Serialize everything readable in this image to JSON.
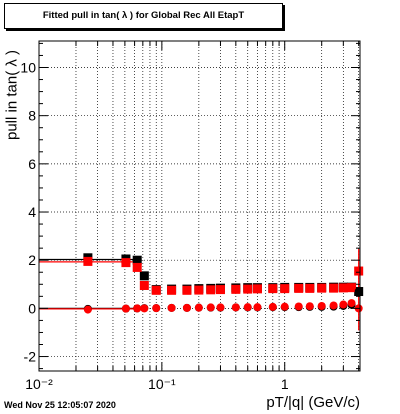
{
  "title": "Fitted pull in tan( λ ) for Global Rec All EtapT",
  "footer": {
    "timestamp": "Wed Nov 25 12:05:07 2020"
  },
  "chart_data": {
    "type": "scatter",
    "title": "Fitted pull in tan( λ ) for Global Rec All EtapT",
    "xlabel": "pT/|q| (GeV/c)",
    "ylabel": "pull in tan( λ )",
    "xscale": "log",
    "xlim": [
      0.01,
      4.1
    ],
    "ylim": [
      -2.6,
      11.1
    ],
    "grid": true,
    "x_ticklabels": [
      "10⁻²",
      "10⁻¹",
      "1"
    ],
    "y_ticks": [
      -2,
      0,
      2,
      4,
      6,
      8,
      10
    ],
    "series": [
      {
        "color": "#000000",
        "markers": "square",
        "role": "sigma",
        "x": [
          0.025,
          0.051,
          0.063,
          0.072,
          0.09,
          0.12,
          0.16,
          0.2,
          0.25,
          0.3,
          0.4,
          0.5,
          0.6,
          0.8,
          1.0,
          1.3,
          1.6,
          2.0,
          2.5,
          3.0,
          3.5,
          4.0
        ],
        "y": [
          2.1,
          2.05,
          2.0,
          1.35,
          0.78,
          0.8,
          0.8,
          0.82,
          0.83,
          0.84,
          0.85,
          0.86,
          0.86,
          0.86,
          0.87,
          0.87,
          0.87,
          0.87,
          0.88,
          0.88,
          0.88,
          0.7
        ]
      },
      {
        "color": "#ff0000",
        "markers": "square",
        "role": "sigma",
        "x": [
          0.025,
          0.051,
          0.063,
          0.072,
          0.09,
          0.12,
          0.16,
          0.2,
          0.25,
          0.3,
          0.4,
          0.5,
          0.6,
          0.8,
          1.0,
          1.3,
          1.6,
          2.0,
          2.5,
          3.0,
          3.5,
          4.0
        ],
        "y": [
          1.95,
          1.9,
          1.7,
          0.95,
          0.75,
          0.75,
          0.75,
          0.76,
          0.77,
          0.78,
          0.79,
          0.8,
          0.81,
          0.82,
          0.82,
          0.83,
          0.83,
          0.84,
          0.84,
          0.85,
          0.86,
          1.55
        ]
      },
      {
        "color": "#000000",
        "markers": "circle",
        "role": "mean",
        "x": [
          0.025,
          0.051,
          0.063,
          0.072,
          0.09,
          0.12,
          0.16,
          0.2,
          0.25,
          0.3,
          0.4,
          0.5,
          0.6,
          0.8,
          1.0,
          1.3,
          1.6,
          2.0,
          2.5,
          3.0,
          3.5,
          4.0
        ],
        "y": [
          -0.02,
          -0.01,
          0.0,
          0.01,
          0.01,
          0.02,
          0.02,
          0.03,
          0.03,
          0.03,
          0.04,
          0.04,
          0.04,
          0.05,
          0.05,
          0.05,
          0.06,
          0.06,
          0.07,
          0.1,
          0.15,
          0.7
        ]
      },
      {
        "color": "#ff0000",
        "markers": "circle",
        "role": "mean",
        "x": [
          0.025,
          0.051,
          0.063,
          0.072,
          0.09,
          0.12,
          0.16,
          0.2,
          0.25,
          0.3,
          0.4,
          0.5,
          0.6,
          0.8,
          1.0,
          1.3,
          1.6,
          2.0,
          2.5,
          3.0,
          3.5,
          4.0
        ],
        "y": [
          -0.05,
          -0.01,
          0.0,
          0.0,
          0.01,
          0.02,
          0.02,
          0.03,
          0.04,
          0.04,
          0.04,
          0.05,
          0.05,
          0.06,
          0.07,
          0.08,
          0.09,
          0.1,
          0.12,
          0.16,
          0.22,
          0.0
        ]
      }
    ]
  }
}
